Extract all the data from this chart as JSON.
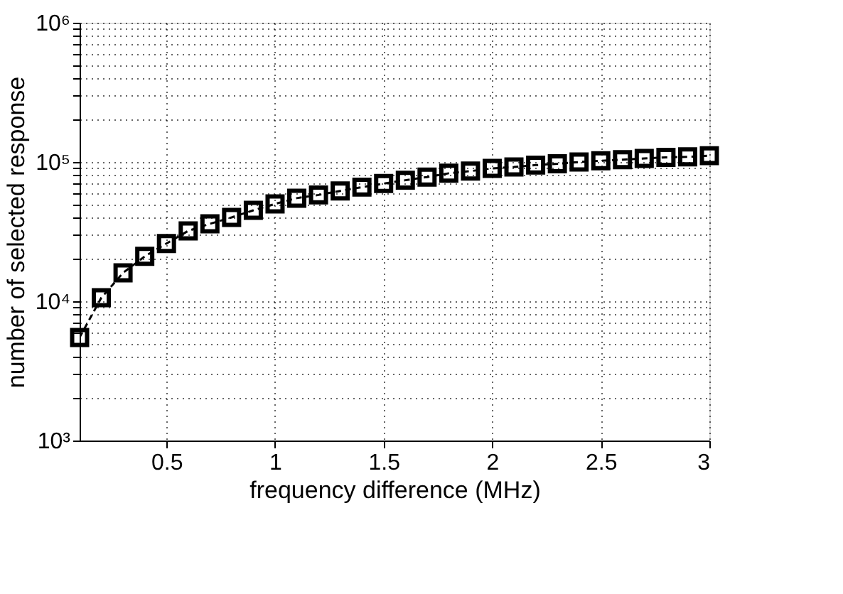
{
  "chart_data": {
    "type": "line",
    "xlabel": "frequency difference (MHz)",
    "ylabel": "number of selected response",
    "x": [
      0.1,
      0.2,
      0.3,
      0.4,
      0.5,
      0.6,
      0.7,
      0.8,
      0.9,
      1.0,
      1.1,
      1.2,
      1.3,
      1.4,
      1.5,
      1.6,
      1.7,
      1.8,
      1.9,
      2.0,
      2.1,
      2.2,
      2.3,
      2.4,
      2.5,
      2.6,
      2.7,
      2.8,
      2.9,
      3.0
    ],
    "series": [
      {
        "color": "#000000",
        "values": [
          5500,
          10600,
          16000,
          21000,
          26000,
          32000,
          36000,
          40000,
          45000,
          50000,
          55000,
          58000,
          62000,
          66000,
          70000,
          74000,
          78000,
          83000,
          86000,
          90000,
          92000,
          95000,
          97000,
          100000,
          102000,
          104000,
          106000,
          108000,
          109000,
          111000
        ]
      }
    ],
    "xlim": [
      0.1,
      3
    ],
    "xticks": [
      0.5,
      1,
      1.5,
      2,
      2.5,
      3
    ],
    "ylim": [
      1000,
      1000000
    ],
    "log": "y",
    "yticks": [
      {
        "value": 1000,
        "label": "10³"
      },
      {
        "value": 2000,
        "label": null
      },
      {
        "value": 3000,
        "label": null
      },
      {
        "value": 4000,
        "label": null
      },
      {
        "value": 5000,
        "label": null
      },
      {
        "value": 6000,
        "label": null
      },
      {
        "value": 7000,
        "label": null
      },
      {
        "value": 8000,
        "label": null
      },
      {
        "value": 9000,
        "label": null
      },
      {
        "value": 10000,
        "label": "10⁴"
      },
      {
        "value": 20000,
        "label": null
      },
      {
        "value": 30000,
        "label": null
      },
      {
        "value": 40000,
        "label": null
      },
      {
        "value": 50000,
        "label": null
      },
      {
        "value": 60000,
        "label": null
      },
      {
        "value": 70000,
        "label": null
      },
      {
        "value": 80000,
        "label": null
      },
      {
        "value": 90000,
        "label": null
      },
      {
        "value": 100000,
        "label": "10⁵"
      },
      {
        "value": 200000,
        "label": null
      },
      {
        "value": 300000,
        "label": null
      },
      {
        "value": 400000,
        "label": null
      },
      {
        "value": 500000,
        "label": null
      },
      {
        "value": 600000,
        "label": null
      },
      {
        "value": 700000,
        "label": null
      },
      {
        "value": 800000,
        "label": null
      },
      {
        "value": 900000,
        "label": null
      },
      {
        "value": 1000000,
        "label": "10⁶"
      }
    ],
    "grid": true,
    "marker": "square",
    "line_style": "dashed"
  }
}
